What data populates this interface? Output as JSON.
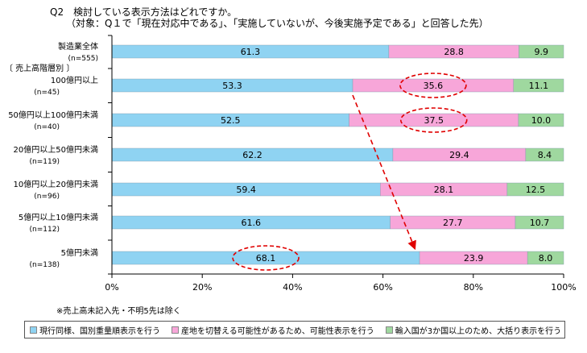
{
  "title": {
    "line1": "Q2　検討している表示方法はどれですか。",
    "line2": "（対象：Q１で「現在対応中である」、「実施していないが、今後実施予定である」と回答した先）"
  },
  "note": "※売上高未記入先・不明5先は除く",
  "colors": {
    "series1": "#8fd3f2",
    "series2": "#f7a6d9",
    "series3": "#9fd89f",
    "annotation": "#e00000"
  },
  "chart_data": {
    "type": "bar",
    "orientation": "horizontal",
    "stacked": true,
    "group_header": "〔 売上高階層別 〕",
    "categories": [
      {
        "label": "製造業全体",
        "n": "(n=555)"
      },
      {
        "label": "100億円以上",
        "n": "(n=45)"
      },
      {
        "label": "50億円以上100億円未満",
        "n": "(n=40)"
      },
      {
        "label": "20億円以上50億円未満",
        "n": "(n=119)"
      },
      {
        "label": "10億円以上20億円未満",
        "n": "(n=96)"
      },
      {
        "label": "5億円以上10億円未満",
        "n": "(n=112)"
      },
      {
        "label": "5億円未満",
        "n": "(n=138)"
      }
    ],
    "series": [
      {
        "name": "現行同様、国別重量順表示を行う",
        "values": [
          61.3,
          53.3,
          52.5,
          62.2,
          59.4,
          61.6,
          68.1
        ]
      },
      {
        "name": "産地を切替える可能性があるため、可能性表示を行う",
        "values": [
          28.8,
          35.6,
          37.5,
          29.4,
          28.1,
          27.7,
          23.9
        ]
      },
      {
        "name": "輸入国が3か国以上のため、大括り表示を行う",
        "values": [
          9.9,
          11.1,
          10.0,
          8.4,
          12.5,
          10.7,
          8.0
        ]
      }
    ],
    "xlim": [
      0,
      100
    ],
    "x_ticks": [
      "0%",
      "20%",
      "40%",
      "60%",
      "80%",
      "100%"
    ],
    "grid": false,
    "legend_position": "bottom",
    "annotations": [
      {
        "type": "ellipse",
        "category_index": 1,
        "series_index": 1
      },
      {
        "type": "ellipse",
        "category_index": 2,
        "series_index": 1
      },
      {
        "type": "ellipse",
        "category_index": 6,
        "series_index": 0
      },
      {
        "type": "dashed-arrow",
        "from_category_index": 1,
        "to_category_index": 6
      }
    ]
  }
}
